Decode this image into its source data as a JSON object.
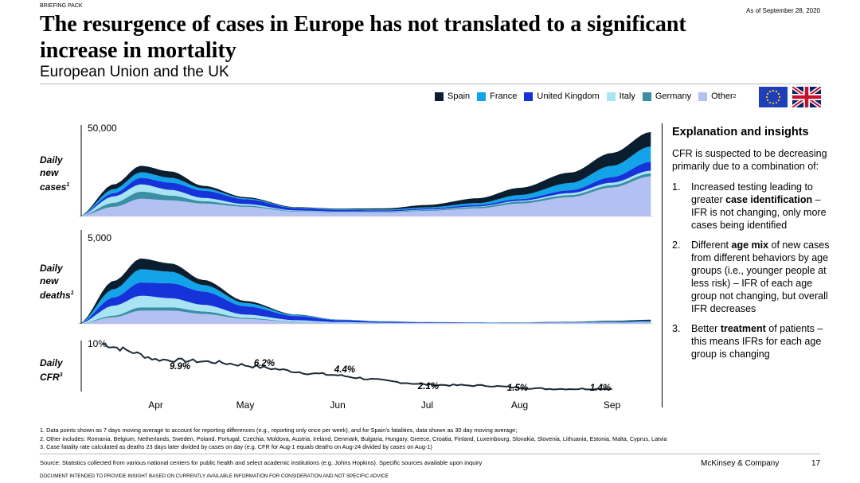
{
  "header": {
    "briefing": "BRIEFING PACK",
    "as_of": "As of September 28, 2020",
    "title": "The resurgence of cases in Europe has not translated to a significant increase in mortality",
    "subtitle": "European Union and the UK"
  },
  "legend": [
    {
      "label": "Spain",
      "color": "#0b1e30"
    },
    {
      "label": "France",
      "color": "#12a3e8"
    },
    {
      "label": "United Kingdom",
      "color": "#1632d9"
    },
    {
      "label": "Italy",
      "color": "#a9e4f4"
    },
    {
      "label": "Germany",
      "color": "#3a8fa4"
    },
    {
      "label": "Other",
      "sup": "2",
      "color": "#b3c0f2"
    }
  ],
  "flags": [
    "eu-flag-icon",
    "uk-flag-icon"
  ],
  "rows": {
    "cases": {
      "l1": "Daily",
      "l2": "new",
      "l3": "cases",
      "sup": "1",
      "ymax": "50,000"
    },
    "deaths": {
      "l1": "Daily",
      "l2": "new",
      "l3": "deaths",
      "sup": "1",
      "ymax": "5,000"
    },
    "cfr": {
      "l1": "Daily",
      "l2": "CFR",
      "sup": "3",
      "ymax": "10%"
    }
  },
  "chart_data": [
    {
      "type": "area",
      "title": "Daily new cases",
      "stacked": true,
      "x": [
        "Mar-20",
        "Apr-1",
        "Apr-10",
        "Apr-20",
        "May-1",
        "May-15",
        "Jun-1",
        "Jun-15",
        "Jul-1",
        "Jul-15",
        "Aug-1",
        "Aug-15",
        "Sep-1",
        "Sep-15",
        "Sep-28"
      ],
      "series": [
        {
          "name": "Other",
          "values": [
            0,
            6000,
            11000,
            10000,
            8000,
            6000,
            3000,
            2500,
            2500,
            3500,
            5000,
            8000,
            12000,
            18000,
            25000
          ]
        },
        {
          "name": "Germany",
          "values": [
            0,
            2500,
            4500,
            3000,
            1500,
            800,
            400,
            400,
            400,
            500,
            900,
            1200,
            1300,
            1500,
            1800
          ]
        },
        {
          "name": "Italy",
          "values": [
            0,
            4000,
            4500,
            3500,
            2000,
            900,
            300,
            200,
            200,
            250,
            300,
            500,
            1200,
            1500,
            1700
          ]
        },
        {
          "name": "United Kingdom",
          "values": [
            0,
            2000,
            4000,
            4500,
            4500,
            3000,
            1500,
            1000,
            700,
            700,
            900,
            1100,
            1800,
            3500,
            5500
          ]
        },
        {
          "name": "France",
          "values": [
            0,
            2500,
            3500,
            3000,
            1500,
            600,
            300,
            400,
            500,
            700,
            1200,
            2500,
            4500,
            7000,
            9500
          ]
        },
        {
          "name": "Spain",
          "values": [
            0,
            3000,
            4000,
            4000,
            1500,
            700,
            300,
            400,
            700,
            1500,
            3000,
            4500,
            6500,
            8000,
            9000
          ]
        }
      ],
      "ylim": [
        0,
        50000
      ],
      "ytick": "50,000"
    },
    {
      "type": "area",
      "title": "Daily new deaths",
      "stacked": true,
      "x": [
        "Mar-20",
        "Apr-1",
        "Apr-10",
        "Apr-20",
        "May-1",
        "May-15",
        "Jun-1",
        "Jun-15",
        "Jul-1",
        "Jul-15",
        "Aug-1",
        "Aug-15",
        "Sep-1",
        "Sep-15",
        "Sep-28"
      ],
      "series": [
        {
          "name": "Other",
          "values": [
            0,
            400,
            800,
            800,
            600,
            300,
            120,
            60,
            40,
            35,
            35,
            40,
            50,
            60,
            80
          ]
        },
        {
          "name": "Germany",
          "values": [
            0,
            100,
            200,
            200,
            150,
            60,
            20,
            8,
            5,
            5,
            5,
            5,
            5,
            8,
            10
          ]
        },
        {
          "name": "Italy",
          "values": [
            0,
            600,
            700,
            550,
            400,
            200,
            80,
            40,
            20,
            10,
            10,
            10,
            12,
            15,
            20
          ]
        },
        {
          "name": "United Kingdom",
          "values": [
            0,
            500,
            800,
            900,
            800,
            500,
            250,
            120,
            70,
            40,
            20,
            12,
            12,
            20,
            30
          ]
        },
        {
          "name": "France",
          "values": [
            0,
            500,
            800,
            700,
            400,
            200,
            60,
            30,
            15,
            10,
            10,
            15,
            25,
            40,
            50
          ]
        },
        {
          "name": "Spain",
          "values": [
            0,
            500,
            650,
            500,
            300,
            120,
            30,
            5,
            5,
            5,
            5,
            10,
            20,
            40,
            60
          ]
        }
      ],
      "ylim": [
        0,
        5000
      ],
      "ytick": "5,000"
    },
    {
      "type": "line",
      "title": "Daily CFR",
      "x": [
        "Mar-28",
        "Apr-5",
        "Apr-15",
        "Apr-25",
        "May-5",
        "May-15",
        "May-25",
        "Jun-5",
        "Jun-15",
        "Jun-25",
        "Jul-5",
        "Jul-15",
        "Jul-25",
        "Aug-5",
        "Aug-15",
        "Aug-25",
        "Sep-5",
        "Sep-15"
      ],
      "y": [
        10.0,
        8.8,
        7.0,
        6.8,
        6.5,
        5.9,
        5.2,
        4.4,
        4.0,
        3.3,
        2.7,
        2.2,
        2.1,
        2.0,
        1.6,
        1.4,
        1.4,
        1.4
      ],
      "labels": [
        "9.9%",
        "6.2%",
        "4.4%",
        "2.1%",
        "1.5%",
        "1.4%"
      ],
      "ylim": [
        0,
        10
      ],
      "ytick": "10%"
    }
  ],
  "months": [
    "Apr",
    "May",
    "Jun",
    "Jul",
    "Aug",
    "Sep"
  ],
  "insights": {
    "heading": "Explanation and insights",
    "intro": "CFR is suspected to be decreasing primarily due to a combination of:",
    "points": [
      {
        "n": "1.",
        "pre": "Increased testing leading to greater ",
        "bold": "case identification",
        "post": " – IFR is not changing, only more cases being identified"
      },
      {
        "n": "2.",
        "pre": "Different ",
        "bold": "age mix",
        "post": " of new cases from different behaviors by age groups (i.e., younger people at less risk) – IFR of each age group not changing, but overall IFR decreases"
      },
      {
        "n": "3.",
        "pre": "Better ",
        "bold": "treatment",
        "post": " of patients – this means IFRs for each age group is changing"
      }
    ]
  },
  "footnotes": [
    "1. Data points shown as 7 days moving average to account for reporting differences (e.g., reporting only once per week), and for Spain’s fatalities, data shown as 30 day moving average;",
    "2. Other includes: Romania, Belgium, Netherlands, Sweden, Poland. Portugal, Czechia, Moldova, Austria, Ireland, Denmark, Bulgaria, Hungary, Greece, Croatia, Finland, Luxembourg, Slovakia, Slovenia, Lithuania, Estonia, Malta, Cyprus, Latvia",
    "3. Case fatality rate calculated as deaths 23 days later divided by  cases on day (e.g. CFR for Aug-1 equals deaths on Aug-24 divided by cases on Aug-1)"
  ],
  "footer": {
    "source": "Source: Statistics collected from various national centers for public health and select academic institutions (e.g. Johns Hopkins). Specific sources available upon inquiry",
    "company": "McKinsey & Company",
    "page": "17",
    "disclaimer": "DOCUMENT INTENDED TO PROVIDE INSIGHT BASED ON CURRENTLY AVAILABLE INFORMATION FOR CONSIDERATION AND NOT SPECIFIC ADVICE"
  }
}
